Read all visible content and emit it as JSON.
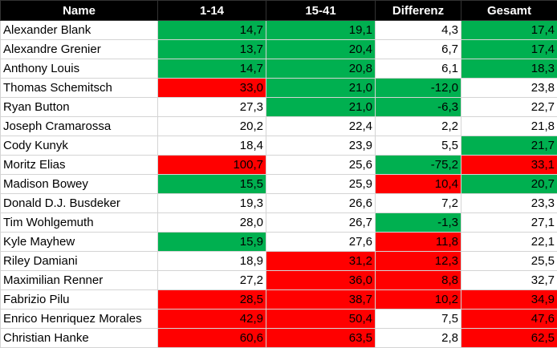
{
  "table": {
    "header": [
      "Name",
      "1-14",
      "15-41",
      "Differenz",
      "Gesamt"
    ],
    "column_widths": [
      196,
      135,
      136,
      107,
      120
    ],
    "header_fill": "#000000",
    "rows": [
      {
        "cells": [
          "Alexander Blank",
          "14,7",
          "19,1",
          "4,3",
          "17,4"
        ],
        "fills": [
          "#ffffff",
          "#00b050",
          "#00b050",
          "#ffffff",
          "#00b050"
        ]
      },
      {
        "cells": [
          "Alexandre Grenier",
          "13,7",
          "20,4",
          "6,7",
          "17,4"
        ],
        "fills": [
          "#ffffff",
          "#00b050",
          "#00b050",
          "#ffffff",
          "#00b050"
        ]
      },
      {
        "cells": [
          "Anthony Louis",
          "14,7",
          "20,8",
          "6,1",
          "18,3"
        ],
        "fills": [
          "#ffffff",
          "#00b050",
          "#00b050",
          "#ffffff",
          "#00b050"
        ]
      },
      {
        "cells": [
          "Thomas Schemitsch",
          "33,0",
          "21,0",
          "-12,0",
          "23,8"
        ],
        "fills": [
          "#ffffff",
          "#ff0000",
          "#00b050",
          "#00b050",
          "#ffffff"
        ]
      },
      {
        "cells": [
          "Ryan Button",
          "27,3",
          "21,0",
          "-6,3",
          "22,7"
        ],
        "fills": [
          "#ffffff",
          "#ffffff",
          "#00b050",
          "#00b050",
          "#ffffff"
        ]
      },
      {
        "cells": [
          "Joseph Cramarossa",
          "20,2",
          "22,4",
          "2,2",
          "21,8"
        ],
        "fills": [
          "#ffffff",
          "#ffffff",
          "#ffffff",
          "#ffffff",
          "#ffffff"
        ]
      },
      {
        "cells": [
          "Cody Kunyk",
          "18,4",
          "23,9",
          "5,5",
          "21,7"
        ],
        "fills": [
          "#ffffff",
          "#ffffff",
          "#ffffff",
          "#ffffff",
          "#00b050"
        ]
      },
      {
        "cells": [
          "Moritz Elias",
          "100,7",
          "25,6",
          "-75,2",
          "33,1"
        ],
        "fills": [
          "#ffffff",
          "#ff0000",
          "#ffffff",
          "#00b050",
          "#ff0000"
        ]
      },
      {
        "cells": [
          "Madison Bowey",
          "15,5",
          "25,9",
          "10,4",
          "20,7"
        ],
        "fills": [
          "#ffffff",
          "#00b050",
          "#ffffff",
          "#ff0000",
          "#00b050"
        ]
      },
      {
        "cells": [
          "Donald D.J. Busdeker",
          "19,3",
          "26,6",
          "7,2",
          "23,3"
        ],
        "fills": [
          "#ffffff",
          "#ffffff",
          "#ffffff",
          "#ffffff",
          "#ffffff"
        ]
      },
      {
        "cells": [
          "Tim Wohlgemuth",
          "28,0",
          "26,7",
          "-1,3",
          "27,1"
        ],
        "fills": [
          "#ffffff",
          "#ffffff",
          "#ffffff",
          "#00b050",
          "#ffffff"
        ]
      },
      {
        "cells": [
          "Kyle Mayhew",
          "15,9",
          "27,6",
          "11,8",
          "22,1"
        ],
        "fills": [
          "#ffffff",
          "#00b050",
          "#ffffff",
          "#ff0000",
          "#ffffff"
        ]
      },
      {
        "cells": [
          "Riley Damiani",
          "18,9",
          "31,2",
          "12,3",
          "25,5"
        ],
        "fills": [
          "#ffffff",
          "#ffffff",
          "#ff0000",
          "#ff0000",
          "#ffffff"
        ]
      },
      {
        "cells": [
          "Maximilian Renner",
          "27,2",
          "36,0",
          "8,8",
          "32,7"
        ],
        "fills": [
          "#ffffff",
          "#ffffff",
          "#ff0000",
          "#ff0000",
          "#ffffff"
        ]
      },
      {
        "cells": [
          "Fabrizio Pilu",
          "28,5",
          "38,7",
          "10,2",
          "34,9"
        ],
        "fills": [
          "#ffffff",
          "#ff0000",
          "#ff0000",
          "#ff0000",
          "#ff0000"
        ]
      },
      {
        "cells": [
          "Enrico Henriquez Morales",
          "42,9",
          "50,4",
          "7,5",
          "47,6"
        ],
        "fills": [
          "#ffffff",
          "#ff0000",
          "#ff0000",
          "#ffffff",
          "#ff0000"
        ]
      },
      {
        "cells": [
          "Christian Hanke",
          "60,6",
          "63,5",
          "2,8",
          "62,5"
        ],
        "fills": [
          "#ffffff",
          "#ff0000",
          "#ff0000",
          "#ffffff",
          "#ff0000"
        ]
      }
    ]
  }
}
